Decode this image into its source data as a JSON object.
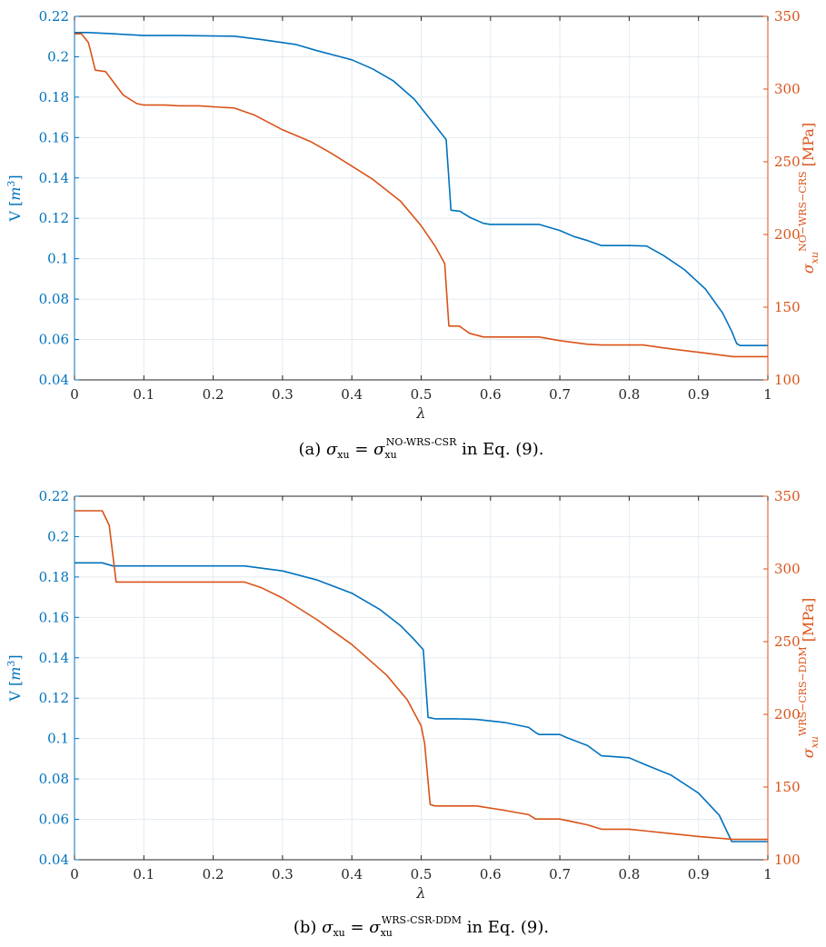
{
  "colors": {
    "left_axis": "#0072BD",
    "right_axis": "#D95319",
    "grid": "#e4ebf1",
    "axis": "#262626"
  },
  "chart_data": [
    {
      "type": "line",
      "caption": {
        "label": "(a)",
        "sigma": "σ",
        "sigma_sub": "xu",
        "eq": "=",
        "sup": "NO-WRS-CSR",
        "tail": "in Eq. (9)."
      },
      "xlabel": "λ",
      "xlim": [
        0,
        1
      ],
      "xticks": [
        0,
        0.1,
        0.2,
        0.3,
        0.4,
        0.5,
        0.6,
        0.7,
        0.8,
        0.9,
        1
      ],
      "xtick_labels": [
        "0",
        "0.1",
        "0.2",
        "0.3",
        "0.4",
        "0.5",
        "0.6",
        "0.7",
        "0.8",
        "0.9",
        "1"
      ],
      "ylabel_left": {
        "text": "V",
        "bracket_open": "[",
        "unit": "m",
        "unit_sup": "3",
        "bracket_close": "]"
      },
      "ylim_left": [
        0.04,
        0.22
      ],
      "yticks_left": [
        "0.04",
        "0.06",
        "0.08",
        "0.1",
        "0.12",
        "0.14",
        "0.16",
        "0.18",
        "0.2",
        "0.22"
      ],
      "ylabel_right": {
        "sigma": "σ",
        "sub": "xu",
        "sup": "NO−WRS−CRS",
        "unit": "[MPa]"
      },
      "ylim_right": [
        100,
        350
      ],
      "yticks_right": [
        "100",
        "150",
        "200",
        "250",
        "300",
        "350"
      ],
      "grid": true,
      "series": [
        {
          "axis": "left",
          "x": [
            0,
            0.02,
            0.05,
            0.1,
            0.15,
            0.2,
            0.23,
            0.27,
            0.32,
            0.35,
            0.4,
            0.43,
            0.46,
            0.49,
            0.52,
            0.536,
            0.543,
            0.556,
            0.57,
            0.59,
            0.6,
            0.63,
            0.67,
            0.68,
            0.7,
            0.72,
            0.74,
            0.76,
            0.8,
            0.825,
            0.85,
            0.88,
            0.91,
            0.935,
            0.948,
            0.955,
            0.96,
            1
          ],
          "y": [
            0.212,
            0.212,
            0.2115,
            0.2105,
            0.2105,
            0.2103,
            0.2102,
            0.2085,
            0.206,
            0.203,
            0.1985,
            0.194,
            0.188,
            0.179,
            0.166,
            0.159,
            0.124,
            0.1235,
            0.1205,
            0.1175,
            0.117,
            0.117,
            0.117,
            0.116,
            0.114,
            0.111,
            0.109,
            0.1065,
            0.1065,
            0.1063,
            0.1015,
            0.0945,
            0.085,
            0.073,
            0.064,
            0.058,
            0.057,
            0.057
          ]
        },
        {
          "axis": "right",
          "x": [
            0,
            0.01,
            0.02,
            0.03,
            0.045,
            0.07,
            0.09,
            0.1,
            0.13,
            0.15,
            0.18,
            0.21,
            0.23,
            0.26,
            0.3,
            0.34,
            0.37,
            0.4,
            0.43,
            0.47,
            0.5,
            0.52,
            0.534,
            0.54,
            0.555,
            0.57,
            0.59,
            0.6,
            0.63,
            0.67,
            0.7,
            0.74,
            0.76,
            0.8,
            0.82,
            0.85,
            0.9,
            0.95,
            1
          ],
          "y": [
            338,
            338,
            332,
            313,
            312,
            296,
            290,
            289,
            289,
            288.5,
            288.5,
            287.5,
            287,
            282,
            272,
            264,
            256,
            247,
            238,
            223,
            206,
            192,
            180,
            137,
            137,
            132,
            129.5,
            129.5,
            129.5,
            129.5,
            127,
            124.5,
            124,
            124,
            124,
            122,
            119,
            116,
            116
          ]
        }
      ]
    },
    {
      "type": "line",
      "caption": {
        "label": "(b)",
        "sigma": "σ",
        "sigma_sub": "xu",
        "eq": "=",
        "sup": "WRS-CSR-DDM",
        "tail": "in Eq. (9)."
      },
      "xlabel": "λ",
      "xlim": [
        0,
        1
      ],
      "xticks": [
        0,
        0.1,
        0.2,
        0.3,
        0.4,
        0.5,
        0.6,
        0.7,
        0.8,
        0.9,
        1
      ],
      "xtick_labels": [
        "0",
        "0.1",
        "0.2",
        "0.3",
        "0.4",
        "0.5",
        "0.6",
        "0.7",
        "0.8",
        "0.9",
        "1"
      ],
      "ylabel_left": {
        "text": "V",
        "bracket_open": "[",
        "unit": "m",
        "unit_sup": "3",
        "bracket_close": "]"
      },
      "ylim_left": [
        0.04,
        0.22
      ],
      "yticks_left": [
        "0.04",
        "0.06",
        "0.08",
        "0.1",
        "0.12",
        "0.14",
        "0.16",
        "0.18",
        "0.2",
        "0.22"
      ],
      "ylabel_right": {
        "sigma": "σ",
        "sub": "xu",
        "sup": "WRS−CRS−DDM",
        "unit": "[MPa]"
      },
      "ylim_right": [
        100,
        350
      ],
      "yticks_right": [
        "100",
        "150",
        "200",
        "250",
        "300",
        "350"
      ],
      "grid": true,
      "series": [
        {
          "axis": "left",
          "x": [
            0,
            0.04,
            0.055,
            0.1,
            0.2,
            0.245,
            0.3,
            0.35,
            0.4,
            0.44,
            0.47,
            0.49,
            0.503,
            0.51,
            0.52,
            0.55,
            0.58,
            0.62,
            0.655,
            0.665,
            0.67,
            0.7,
            0.71,
            0.74,
            0.76,
            0.8,
            0.82,
            0.86,
            0.9,
            0.93,
            0.948,
            1
          ],
          "y": [
            0.187,
            0.187,
            0.1855,
            0.1855,
            0.1855,
            0.1855,
            0.183,
            0.1785,
            0.172,
            0.164,
            0.156,
            0.149,
            0.144,
            0.1105,
            0.1098,
            0.1098,
            0.1095,
            0.108,
            0.1055,
            0.103,
            0.102,
            0.102,
            0.1005,
            0.0965,
            0.0915,
            0.0905,
            0.0875,
            0.082,
            0.073,
            0.062,
            0.049,
            0.049
          ]
        },
        {
          "axis": "right",
          "x": [
            0,
            0.04,
            0.05,
            0.06,
            0.1,
            0.2,
            0.245,
            0.27,
            0.3,
            0.35,
            0.4,
            0.45,
            0.48,
            0.5,
            0.505,
            0.513,
            0.52,
            0.58,
            0.62,
            0.655,
            0.665,
            0.67,
            0.7,
            0.74,
            0.76,
            0.8,
            0.82,
            0.86,
            0.9,
            0.95,
            1
          ],
          "y": [
            340,
            340,
            330,
            291,
            291,
            291,
            291,
            287,
            280,
            265,
            248,
            227,
            210,
            192,
            180,
            138,
            137,
            137,
            134,
            131,
            128,
            128,
            128,
            124,
            121,
            121,
            120,
            118,
            116,
            114,
            114
          ]
        }
      ]
    }
  ]
}
